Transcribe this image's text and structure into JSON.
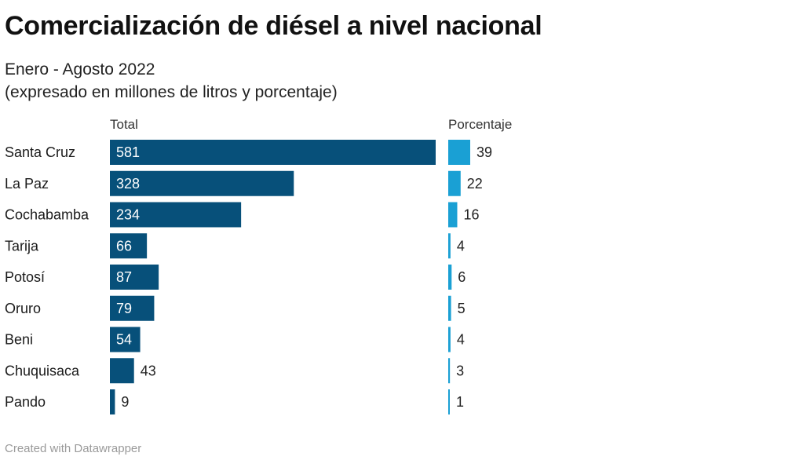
{
  "title": "Comercialización de diésel a nivel nacional",
  "subtitle": {
    "line1": "Enero - Agosto 2022",
    "line2": "(expresado en millones de litros y porcentaje)"
  },
  "footer": "Created with Datawrapper",
  "colors": {
    "total_bar": "#07507a",
    "pct_bar": "#1aa0d4",
    "label_inside": "#ffffff",
    "label_outside": "#222222"
  },
  "chart_data": {
    "type": "bar",
    "orientation": "horizontal",
    "categories": [
      "Santa Cruz",
      "La Paz",
      "Cochabamba",
      "Tarija",
      "Potosí",
      "Oruro",
      "Beni",
      "Chuquisaca",
      "Pando"
    ],
    "series": [
      {
        "name": "Total",
        "values": [
          581,
          328,
          234,
          66,
          87,
          79,
          54,
          43,
          9
        ]
      },
      {
        "name": "Porcentaje",
        "values": [
          39,
          22,
          16,
          4,
          6,
          5,
          4,
          3,
          1
        ]
      }
    ],
    "xlim_total": [
      0,
      581
    ],
    "xlim_pct": [
      0,
      39
    ]
  }
}
